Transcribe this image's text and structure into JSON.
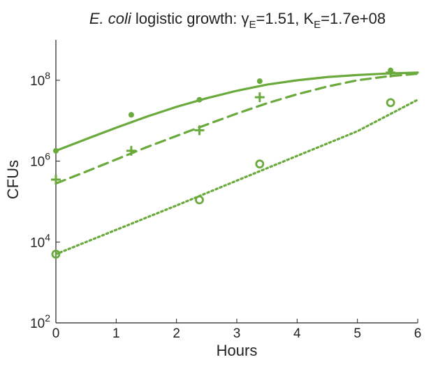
{
  "chart_data": {
    "type": "scatter",
    "title": {
      "italic": "E. coli",
      "text": " logistic growth: ",
      "gamma_symbol": "γ",
      "gamma_sub": "E",
      "gamma_value": "=1.51, ",
      "k_symbol": "K",
      "k_sub": "E",
      "k_value": "=1.7e+08"
    },
    "xlabel": "Hours",
    "ylabel": "CFUs",
    "xlim": [
      0,
      6
    ],
    "ylim": [
      100,
      1000000000
    ],
    "yscale": "log",
    "grid": false,
    "legend": "none",
    "color": "#6aaa3c",
    "x_ticks": [
      0,
      1,
      2,
      3,
      4,
      5,
      6
    ],
    "x_tick_labels": [
      "0",
      "1",
      "2",
      "3",
      "4",
      "5",
      "6"
    ],
    "y_ticks": [
      100,
      10000,
      1000000,
      100000000
    ],
    "y_tick_base": [
      "10",
      "10",
      "10",
      "10"
    ],
    "y_tick_exp": [
      "2",
      "4",
      "6",
      "8"
    ],
    "series": [
      {
        "marker": "dot",
        "line": "solid",
        "points": [
          [
            0,
            1800000
          ],
          [
            1.25,
            14000000
          ],
          [
            2.38,
            33000000
          ],
          [
            3.38,
            95000000
          ],
          [
            5.55,
            175000000
          ]
        ],
        "fit": [
          [
            0,
            1800000
          ],
          [
            0.5,
            3500000
          ],
          [
            1,
            6700000
          ],
          [
            1.5,
            12500000
          ],
          [
            2,
            22000000
          ],
          [
            2.5,
            36000000
          ],
          [
            3,
            55000000
          ],
          [
            3.5,
            78000000
          ],
          [
            4,
            100000000
          ],
          [
            4.5,
            120000000
          ],
          [
            5,
            135000000
          ],
          [
            5.5,
            147000000
          ],
          [
            6,
            155000000
          ]
        ]
      },
      {
        "marker": "plus",
        "line": "dashed",
        "points": [
          [
            0,
            350000
          ],
          [
            1.25,
            1800000
          ],
          [
            2.38,
            5800000
          ],
          [
            3.38,
            38000000
          ],
          [
            5.55,
            155000000
          ]
        ],
        "fit": [
          [
            0,
            280000
          ],
          [
            0.5,
            550000
          ],
          [
            1,
            1100000
          ],
          [
            1.5,
            2200000
          ],
          [
            2,
            4200000
          ],
          [
            2.5,
            8000000
          ],
          [
            3,
            15000000
          ],
          [
            3.5,
            27000000
          ],
          [
            4,
            45000000
          ],
          [
            4.5,
            70000000
          ],
          [
            5,
            100000000
          ],
          [
            5.5,
            125000000
          ],
          [
            6,
            145000000
          ]
        ]
      },
      {
        "marker": "circle",
        "line": "dotted",
        "points": [
          [
            0,
            5000
          ],
          [
            2.38,
            110000
          ],
          [
            3.38,
            850000
          ],
          [
            5.55,
            28000000
          ]
        ],
        "fit": [
          [
            0,
            5000
          ],
          [
            1,
            20000
          ],
          [
            2,
            80000
          ],
          [
            3,
            330000
          ],
          [
            4,
            1350000
          ],
          [
            5,
            5500000
          ],
          [
            6,
            33000000
          ]
        ]
      }
    ]
  }
}
